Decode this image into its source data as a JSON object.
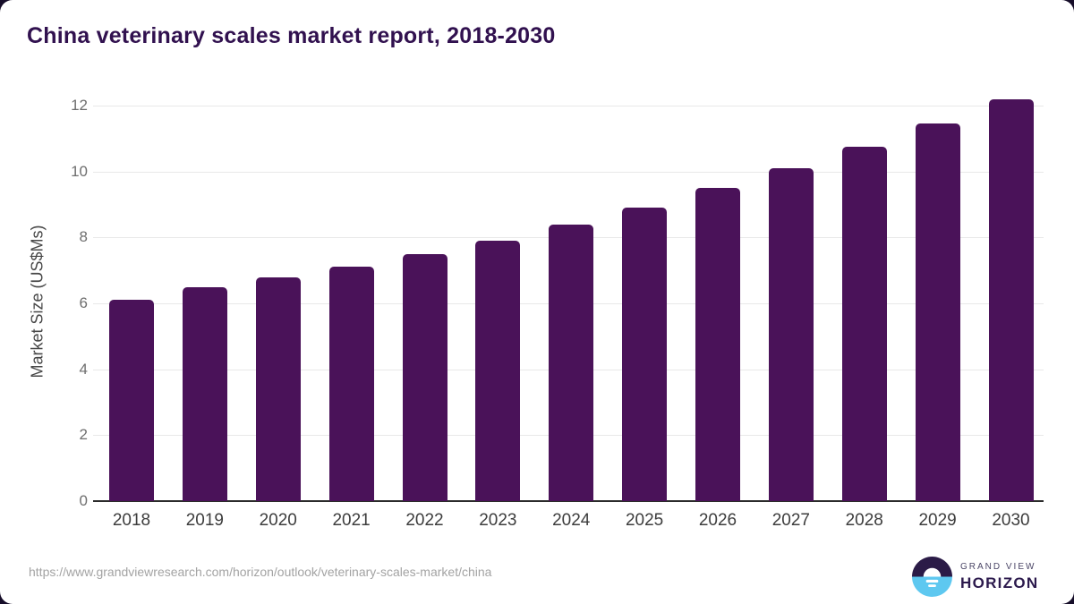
{
  "title": "China veterinary scales market report, 2018-2030",
  "chart_data": {
    "type": "bar",
    "categories": [
      "2018",
      "2019",
      "2020",
      "2021",
      "2022",
      "2023",
      "2024",
      "2025",
      "2026",
      "2027",
      "2028",
      "2029",
      "2030"
    ],
    "values": [
      6.1,
      6.5,
      6.8,
      7.1,
      7.5,
      7.9,
      8.4,
      8.9,
      9.5,
      10.1,
      10.75,
      11.45,
      12.2
    ],
    "title": "China veterinary scales market report, 2018-2030",
    "xlabel": "",
    "ylabel": "Market Size (US$Ms)",
    "ylim": [
      0,
      12
    ],
    "yticks": [
      0,
      2,
      4,
      6,
      8,
      10,
      12
    ],
    "grid": "horizontal-only",
    "legend": "none",
    "bar_color": "#4a1259"
  },
  "footer": {
    "source_url": "https://www.grandviewresearch.com/horizon/outlook/veterinary-scales-market/china",
    "logo": {
      "line1": "GRAND VIEW",
      "line2": "HORIZON"
    }
  },
  "colors": {
    "title_text": "#31114f",
    "bar": "#4a1259",
    "gridline": "#e9e9e9",
    "axis_line": "#2b2b2b",
    "y_tick_text": "#6e6e6e",
    "x_tick_text": "#3d3d3d",
    "url_text": "#a3a3a3",
    "logo_purple": "#2b1b47",
    "logo_blue": "#5ec8f0",
    "outer_background": "#160d29"
  }
}
